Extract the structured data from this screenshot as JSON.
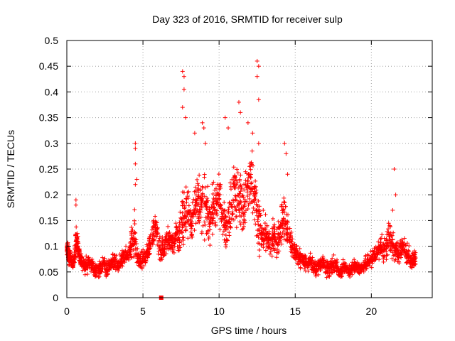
{
  "chart_data": {
    "type": "scatter",
    "title": "Day 323 of 2016, SRMTID for receiver sulp",
    "xlabel": "GPS time / hours",
    "ylabel": "SRMTID / TECUs",
    "xlim": [
      0,
      24
    ],
    "ylim": [
      0,
      0.5
    ],
    "x_ticks": [
      0,
      5,
      10,
      15,
      20
    ],
    "x_tick_labels": [
      "0",
      "5",
      "10",
      "15",
      "20"
    ],
    "y_ticks": [
      0,
      0.05,
      0.1,
      0.15,
      0.2,
      0.25,
      0.3,
      0.35,
      0.4,
      0.45,
      0.5
    ],
    "y_tick_labels": [
      "0",
      "0.05",
      "0.1",
      "0.15",
      "0.2",
      "0.25",
      "0.3",
      "0.35",
      "0.4",
      "0.45",
      "0.5"
    ],
    "grid": true,
    "marker": "plus",
    "color": "#ff0000",
    "series": [
      {
        "x": [
          0.0,
          0.05,
          0.1,
          0.15,
          0.2,
          0.3,
          0.4,
          0.5,
          0.6,
          0.7,
          0.8,
          0.9,
          1.0,
          1.2,
          1.4,
          1.6,
          1.8,
          2.0,
          2.2,
          2.4,
          2.6,
          2.8,
          3.0,
          3.2,
          3.4,
          3.6,
          3.8,
          4.0,
          4.2,
          4.4,
          4.6,
          4.8,
          5.0,
          5.2,
          5.4,
          5.6,
          5.8,
          6.0,
          6.2,
          6.4,
          6.6,
          6.8,
          7.0,
          7.2,
          7.4,
          7.6,
          7.8,
          8.0,
          8.2,
          8.4,
          8.6,
          8.8,
          9.0,
          9.2,
          9.4,
          9.6,
          9.8,
          10.0,
          10.2,
          10.4,
          10.6,
          10.8,
          11.0,
          11.2,
          11.4,
          11.6,
          11.8,
          12.0,
          12.2,
          12.4,
          12.6,
          12.8,
          13.0,
          13.2,
          13.4,
          13.6,
          13.8,
          14.0,
          14.2,
          14.4,
          14.6,
          14.8,
          15.0,
          15.2,
          15.4,
          15.6,
          15.8,
          16.0,
          16.2,
          16.4,
          16.6,
          16.8,
          17.0,
          17.2,
          17.4,
          17.6,
          17.8,
          18.0,
          18.2,
          18.4,
          18.6,
          18.8,
          19.0,
          19.2,
          19.4,
          19.6,
          19.8,
          20.0,
          20.2,
          20.4,
          20.6,
          20.8,
          21.0,
          21.2,
          21.4,
          21.6,
          21.8,
          22.0,
          22.2,
          22.4,
          22.6,
          22.8
        ],
        "y": [
          0.09,
          0.1,
          0.08,
          0.075,
          0.085,
          0.07,
          0.065,
          0.08,
          0.12,
          0.1,
          0.09,
          0.075,
          0.07,
          0.06,
          0.065,
          0.07,
          0.055,
          0.05,
          0.06,
          0.065,
          0.055,
          0.06,
          0.07,
          0.065,
          0.06,
          0.075,
          0.08,
          0.085,
          0.1,
          0.13,
          0.08,
          0.07,
          0.075,
          0.08,
          0.1,
          0.12,
          0.14,
          0.11,
          0.09,
          0.1,
          0.12,
          0.11,
          0.1,
          0.13,
          0.12,
          0.15,
          0.17,
          0.16,
          0.14,
          0.18,
          0.2,
          0.17,
          0.19,
          0.16,
          0.15,
          0.17,
          0.18,
          0.2,
          0.16,
          0.14,
          0.15,
          0.18,
          0.22,
          0.2,
          0.19,
          0.17,
          0.2,
          0.22,
          0.21,
          0.18,
          0.14,
          0.12,
          0.13,
          0.11,
          0.1,
          0.12,
          0.11,
          0.13,
          0.16,
          0.14,
          0.12,
          0.1,
          0.09,
          0.08,
          0.075,
          0.07,
          0.065,
          0.07,
          0.06,
          0.055,
          0.065,
          0.07,
          0.06,
          0.055,
          0.06,
          0.065,
          0.055,
          0.05,
          0.06,
          0.055,
          0.05,
          0.06,
          0.065,
          0.055,
          0.06,
          0.065,
          0.07,
          0.075,
          0.08,
          0.09,
          0.1,
          0.09,
          0.1,
          0.12,
          0.1,
          0.09,
          0.085,
          0.1,
          0.09,
          0.08,
          0.07,
          0.075
        ],
        "spread": [
          0.02,
          0.02,
          0.02,
          0.02,
          0.02,
          0.02,
          0.02,
          0.02,
          0.05,
          0.04,
          0.025,
          0.025,
          0.025,
          0.025,
          0.025,
          0.025,
          0.025,
          0.025,
          0.025,
          0.025,
          0.025,
          0.025,
          0.025,
          0.025,
          0.025,
          0.025,
          0.025,
          0.025,
          0.04,
          0.1,
          0.03,
          0.025,
          0.025,
          0.025,
          0.035,
          0.04,
          0.04,
          0.04,
          0.035,
          0.04,
          0.05,
          0.04,
          0.04,
          0.05,
          0.06,
          0.12,
          0.1,
          0.07,
          0.06,
          0.08,
          0.09,
          0.08,
          0.1,
          0.07,
          0.07,
          0.07,
          0.08,
          0.08,
          0.07,
          0.06,
          0.07,
          0.08,
          0.1,
          0.1,
          0.09,
          0.08,
          0.1,
          0.12,
          0.1,
          0.1,
          0.08,
          0.05,
          0.06,
          0.05,
          0.045,
          0.05,
          0.045,
          0.05,
          0.09,
          0.07,
          0.05,
          0.04,
          0.035,
          0.03,
          0.025,
          0.025,
          0.025,
          0.025,
          0.025,
          0.025,
          0.025,
          0.025,
          0.025,
          0.025,
          0.025,
          0.025,
          0.02,
          0.02,
          0.02,
          0.02,
          0.02,
          0.02,
          0.02,
          0.02,
          0.02,
          0.025,
          0.025,
          0.025,
          0.03,
          0.035,
          0.04,
          0.035,
          0.04,
          0.06,
          0.04,
          0.035,
          0.03,
          0.04,
          0.035,
          0.03,
          0.025,
          0.025
        ]
      }
    ],
    "highlights": [
      {
        "x": 0.6,
        "y": 0.19
      },
      {
        "x": 0.6,
        "y": 0.18
      },
      {
        "x": 4.5,
        "y": 0.3
      },
      {
        "x": 4.5,
        "y": 0.29
      },
      {
        "x": 4.5,
        "y": 0.26
      },
      {
        "x": 4.6,
        "y": 0.23
      },
      {
        "x": 4.5,
        "y": 0.22
      },
      {
        "x": 7.6,
        "y": 0.44
      },
      {
        "x": 7.7,
        "y": 0.43
      },
      {
        "x": 7.7,
        "y": 0.405
      },
      {
        "x": 7.6,
        "y": 0.37
      },
      {
        "x": 7.8,
        "y": 0.35
      },
      {
        "x": 8.4,
        "y": 0.32
      },
      {
        "x": 8.9,
        "y": 0.34
      },
      {
        "x": 9.0,
        "y": 0.33
      },
      {
        "x": 9.1,
        "y": 0.3
      },
      {
        "x": 10.4,
        "y": 0.35
      },
      {
        "x": 10.6,
        "y": 0.33
      },
      {
        "x": 11.3,
        "y": 0.38
      },
      {
        "x": 11.4,
        "y": 0.36
      },
      {
        "x": 12.5,
        "y": 0.46
      },
      {
        "x": 12.6,
        "y": 0.45
      },
      {
        "x": 12.5,
        "y": 0.43
      },
      {
        "x": 12.6,
        "y": 0.385
      },
      {
        "x": 12.6,
        "y": 0.3
      },
      {
        "x": 12.2,
        "y": 0.32
      },
      {
        "x": 11.9,
        "y": 0.34
      },
      {
        "x": 14.3,
        "y": 0.3
      },
      {
        "x": 14.4,
        "y": 0.28
      },
      {
        "x": 14.5,
        "y": 0.24
      },
      {
        "x": 21.5,
        "y": 0.25
      },
      {
        "x": 21.6,
        "y": 0.2
      },
      {
        "x": 21.4,
        "y": 0.17
      }
    ],
    "bottom_marker": {
      "x": 6.2,
      "y": 0.0
    }
  }
}
